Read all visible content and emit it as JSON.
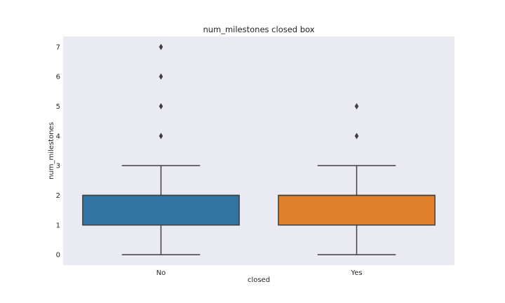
{
  "chart_data": {
    "type": "box",
    "title": "num_milestones closed box",
    "xlabel": "closed",
    "ylabel": "num_milestones",
    "categories": [
      "No",
      "Yes"
    ],
    "ylim": [
      -0.35,
      7.35
    ],
    "yticks": [
      "0",
      "1",
      "2",
      "3",
      "4",
      "5",
      "6",
      "7"
    ],
    "grid": false,
    "background": "#eaeaf2",
    "boxes": [
      {
        "category": "No",
        "whisker_low": 0,
        "q1": 1,
        "median": 2,
        "q3": 2,
        "whisker_high": 3,
        "outliers": [
          4,
          5,
          6,
          7
        ],
        "color": "#3274a1"
      },
      {
        "category": "Yes",
        "whisker_low": 0,
        "q1": 1,
        "median": 2,
        "q3": 2,
        "whisker_high": 3,
        "outliers": [
          4,
          5
        ],
        "color": "#e1812c"
      }
    ]
  }
}
